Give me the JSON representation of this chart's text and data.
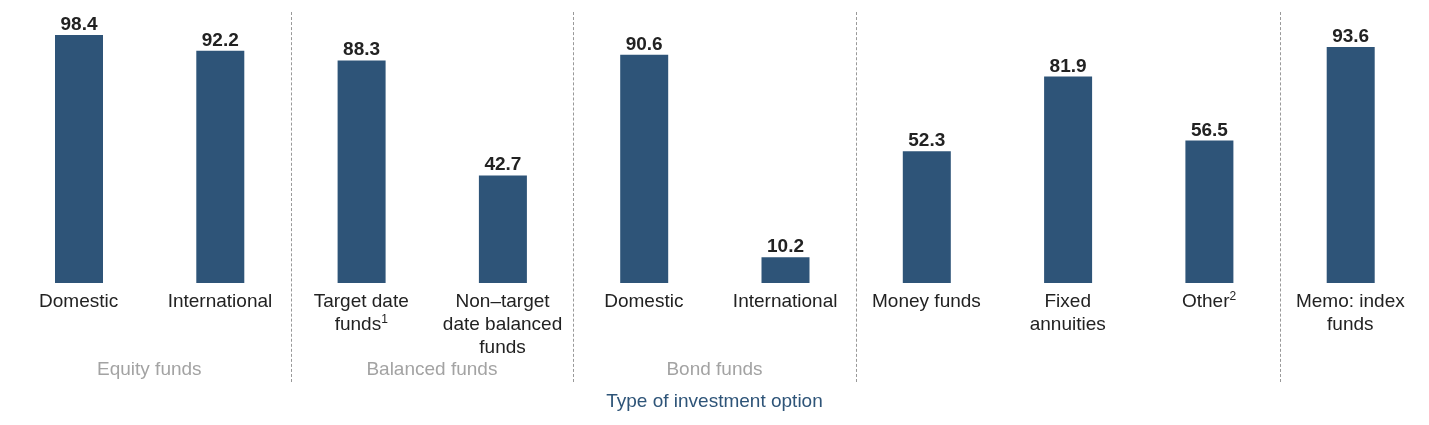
{
  "chart_data": {
    "type": "bar",
    "xlabel": "Type of investment option",
    "categories": [
      "Domestic",
      "International",
      "Target date funds$^{1}$",
      "Non–target date balanced funds",
      "Domestic",
      "International",
      "Money funds",
      "Fixed annuities",
      "Other$^{2}$",
      "Memo: index funds"
    ],
    "values": [
      98.4,
      92.2,
      88.3,
      42.7,
      90.6,
      10.2,
      52.3,
      81.9,
      56.5,
      93.6
    ],
    "color": "#2e5478",
    "data_labels": true,
    "annotations": [
      "Equity funds",
      "Balanced funds",
      "Bond funds"
    ]
  }
}
